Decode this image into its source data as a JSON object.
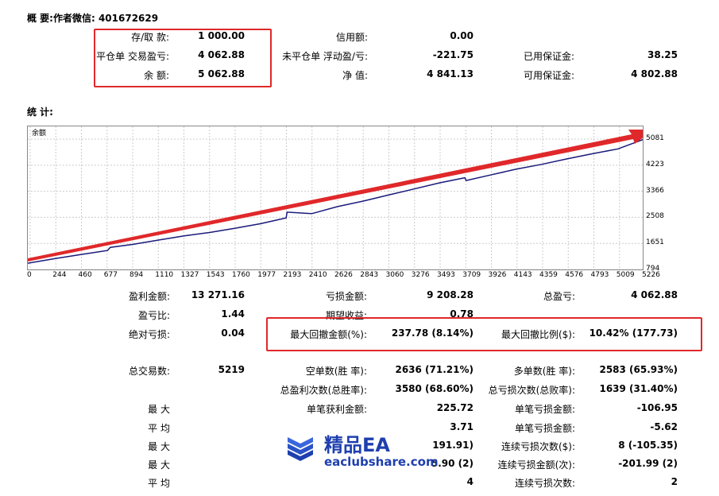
{
  "summary_title": "概 要:作者微信: 401672629",
  "stats_title": "统 计:",
  "summary_rows": [
    {
      "l1": "存/取 款:",
      "v1": "1 000.00",
      "l2": "信用额:",
      "v2": "0.00",
      "l3": "",
      "v3": ""
    },
    {
      "l1": "平仓单 交易盈亏:",
      "v1": "4 062.88",
      "l2": "未平仓单 浮动盈/亏:",
      "v2": "-221.75",
      "l3": "已用保证金:",
      "v3": "38.25"
    },
    {
      "l1": "余 额:",
      "v1": "5 062.88",
      "l2": "净 值:",
      "v2": "4 841.13",
      "l3": "可用保证金:",
      "v3": "4 802.88"
    }
  ],
  "stats_rows": [
    {
      "l1": "盈利金额:",
      "v1": "13 271.16",
      "l2": "亏损金额:",
      "v2": "9 208.28",
      "l3": "总盈亏:",
      "v3": "4 062.88"
    },
    {
      "l1": "盈亏比:",
      "v1": "1.44",
      "l2": "期望收益:",
      "v2": "0.78",
      "l3": "",
      "v3": ""
    },
    {
      "l1": "绝对亏损:",
      "v1": "0.04",
      "l2": "最大回撤金额(%):",
      "v2": "237.78 (8.14%)",
      "l3": "最大回撤比例($):",
      "v3": "10.42% (177.73)"
    },
    {
      "l1": "总交易数:",
      "v1": "5219",
      "l2": "空单数(胜 率):",
      "v2": "2636 (71.21%)",
      "l3": "多单数(胜 率):",
      "v3": "2583 (65.93%)"
    },
    {
      "l1": "",
      "v1": "",
      "l2": "总盈利次数(总胜率):",
      "v2": "3580 (68.60%)",
      "l3": "总亏损次数(总败率):",
      "v3": "1639 (31.40%)"
    },
    {
      "l1": "最 大",
      "v1": "",
      "l2": "单笔获利金额:",
      "v2": "225.72",
      "l3": "单笔亏损金额:",
      "v3": "-106.95"
    },
    {
      "l1": "平 均",
      "v1": "",
      "l2": "",
      "v2": "3.71",
      "l3": "单笔亏损金额:",
      "v3": "-5.62"
    },
    {
      "l1": "最 大",
      "v1": "",
      "l2": "",
      "v2": "191.91)",
      "l3": "连续亏损次数($):",
      "v3": "8 (-105.35)"
    },
    {
      "l1": "最 大",
      "v1": "",
      "l2": "",
      "v2": "5.90 (2)",
      "l3": "连续亏损金额(次):",
      "v3": "-201.99 (2)"
    },
    {
      "l1": "平 均",
      "v1": "",
      "l2": "",
      "v2": "4",
      "l3": "连续亏损次数:",
      "v3": "2"
    }
  ],
  "watermark": {
    "main": "精品EA",
    "sub": "eaclubshare.com"
  },
  "chart_data": {
    "type": "line",
    "title": "余额",
    "x_ticks": [
      "0",
      "244",
      "460",
      "677",
      "894",
      "1110",
      "1327",
      "1543",
      "1760",
      "1977",
      "2193",
      "2410",
      "2626",
      "2843",
      "3060",
      "3276",
      "3493",
      "3709",
      "3926",
      "4143",
      "4359",
      "4576",
      "4793",
      "5009",
      "5226"
    ],
    "y_ticks": [
      "5081",
      "4223",
      "3366",
      "2508",
      "1651",
      "794"
    ],
    "xlim": [
      0,
      5219
    ],
    "ylim": [
      794,
      5081
    ],
    "series": [
      {
        "color": "#1a1a7a",
        "x": [
          0,
          244,
          460,
          677,
          700,
          894,
          1110,
          1327,
          1543,
          1760,
          1977,
          2193,
          2200,
          2410,
          2626,
          2843,
          3060,
          3276,
          3493,
          3709,
          3720,
          3926,
          4143,
          4359,
          4576,
          4793,
          5009,
          5219
        ],
        "y": [
          1000,
          1160,
          1290,
          1420,
          1520,
          1620,
          1760,
          1900,
          2010,
          2150,
          2300,
          2490,
          2680,
          2630,
          2860,
          3040,
          3240,
          3440,
          3640,
          3810,
          3720,
          3900,
          4090,
          4250,
          4430,
          4600,
          4760,
          5062
        ]
      }
    ],
    "annotation_arrow_color": "#e0282a"
  }
}
